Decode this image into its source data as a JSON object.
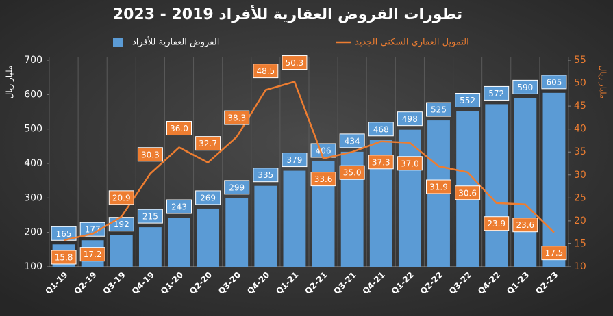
{
  "chart_data": {
    "type": "bar_line",
    "title": "تطورات القروض العقارية للأفراد 2019 - 2023",
    "y_label": "مليار ريال",
    "y2_label": "مليار ريال",
    "categories": [
      "Q1-19",
      "Q2-19",
      "Q3-19",
      "Q4-19",
      "Q1-20",
      "Q2-20",
      "Q3-20",
      "Q4-20",
      "Q1-21",
      "Q2-21",
      "Q3-21",
      "Q4-21",
      "Q1-22",
      "Q2-22",
      "Q3-22",
      "Q4-22",
      "Q1-23",
      "Q2-23"
    ],
    "series": [
      {
        "name": "القروض العقارية للأفراد",
        "type": "bar",
        "color": "#5b9bd5",
        "values": [
          165,
          177,
          192,
          215,
          243,
          269,
          299,
          335,
          379,
          406,
          434,
          468,
          498,
          525,
          552,
          572,
          590,
          605
        ]
      },
      {
        "name": "التمويل العقاري السكني الجديد",
        "type": "line",
        "axis": "y2",
        "color": "#ed7d31",
        "values": [
          15.8,
          17.2,
          20.9,
          30.3,
          36.0,
          32.7,
          38.3,
          48.5,
          50.3,
          33.6,
          35.0,
          37.3,
          37.0,
          31.9,
          30.6,
          23.9,
          23.6,
          17.5
        ],
        "value_labels": [
          "15.8",
          "17.2",
          "20.9",
          "30.3",
          "36.0",
          "32.7",
          "38.3",
          "48.5",
          "50.3",
          "33.6",
          "35.0",
          "37.3",
          "37.0",
          "31.9",
          "30.6",
          "23.9",
          "23.6",
          "17.5"
        ]
      }
    ],
    "ylim": [
      100,
      700
    ],
    "yticks": [
      100,
      200,
      300,
      400,
      500,
      600,
      700
    ],
    "y2lim": [
      10,
      55
    ],
    "y2ticks": [
      10,
      15,
      20,
      25,
      30,
      35,
      40,
      45,
      50,
      55
    ],
    "legend": "top"
  }
}
